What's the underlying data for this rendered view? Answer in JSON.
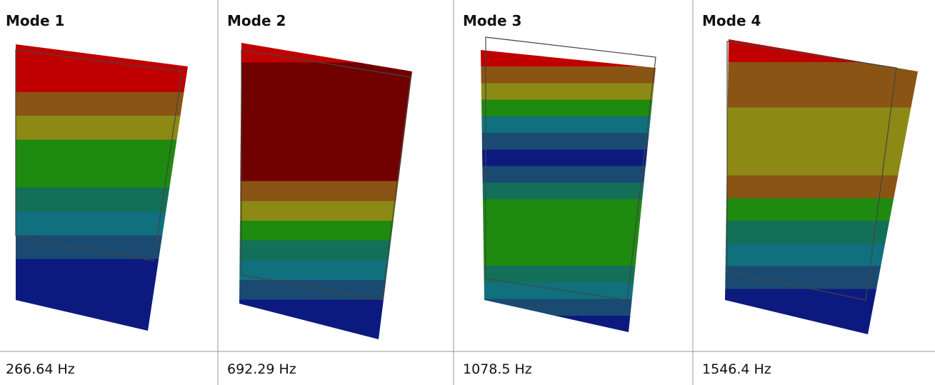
{
  "table": {
    "rows": [
      [
        "Mode 1",
        "Mode 2",
        "Mode 3",
        "Mode 4"
      ],
      [
        "266.64 Hz",
        "692.29 Hz",
        "1078.5 Hz",
        "1546.4 Hz"
      ]
    ]
  }
}
